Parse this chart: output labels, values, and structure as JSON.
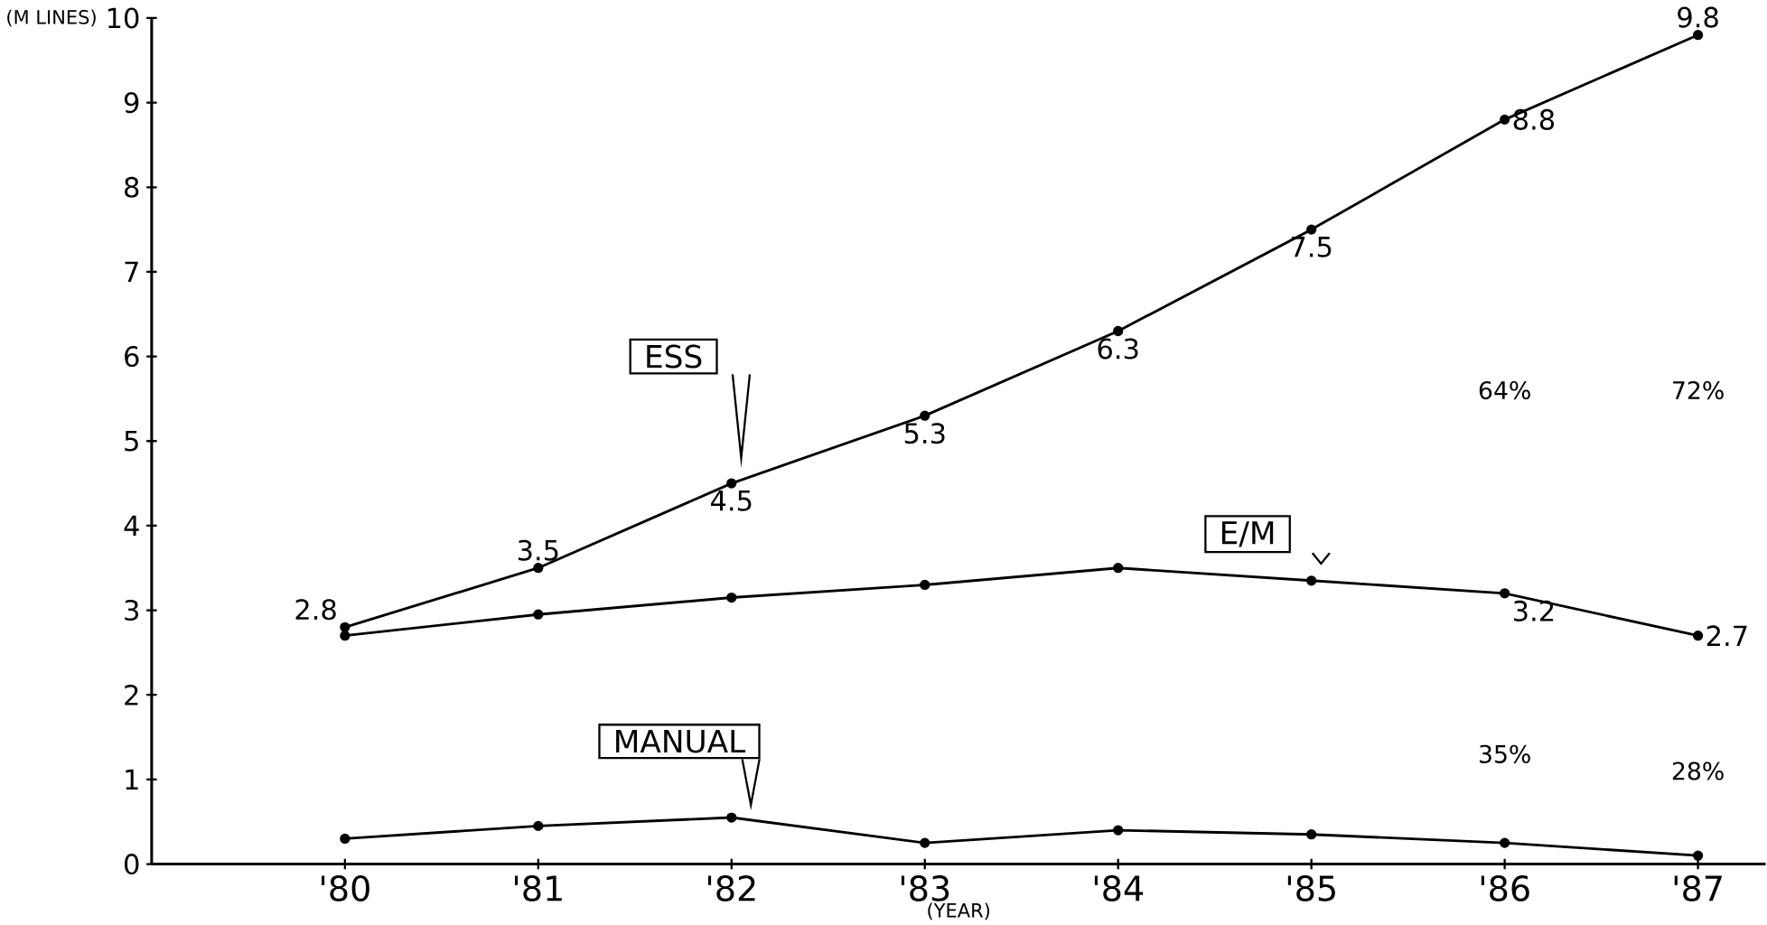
{
  "chart_data": {
    "type": "line",
    "xlabel": "(YEAR)",
    "ylabel": "(M LINES)",
    "categories": [
      "'80",
      "'81",
      "'82",
      "'83",
      "'84",
      "'85",
      "'86",
      "'87"
    ],
    "series": [
      {
        "name": "ESS",
        "color": "#000000",
        "values": [
          2.8,
          3.5,
          4.5,
          5.3,
          6.3,
          7.5,
          8.8,
          9.8
        ],
        "value_labels": [
          "2.8",
          "3.5",
          "4.5",
          "5.3",
          "6.3",
          "7.5",
          "8.8",
          "9.8"
        ]
      },
      {
        "name": "E/M",
        "color": "#000000",
        "values": [
          2.7,
          2.95,
          3.15,
          3.3,
          3.5,
          3.35,
          3.2,
          2.7
        ],
        "value_labels": [
          null,
          null,
          null,
          null,
          null,
          null,
          "3.2",
          "2.7"
        ]
      },
      {
        "name": "MANUAL",
        "color": "#000000",
        "values": [
          0.3,
          0.45,
          0.55,
          0.25,
          0.4,
          0.35,
          0.25,
          0.1
        ]
      }
    ],
    "annotations": [
      {
        "text": "64%",
        "x": "'86",
        "y": 5.6
      },
      {
        "text": "72%",
        "x": "'87",
        "y": 5.6
      },
      {
        "text": "35%",
        "x": "'86",
        "y": 1.3
      },
      {
        "text": "28%",
        "x": "'87",
        "y": 1.1
      }
    ],
    "ylim": [
      0,
      10
    ],
    "yticks": [
      0,
      1,
      2,
      3,
      4,
      5,
      6,
      7,
      8,
      9,
      10
    ],
    "marker": "circle",
    "line_style": "solid",
    "grid": false,
    "legend": false
  }
}
